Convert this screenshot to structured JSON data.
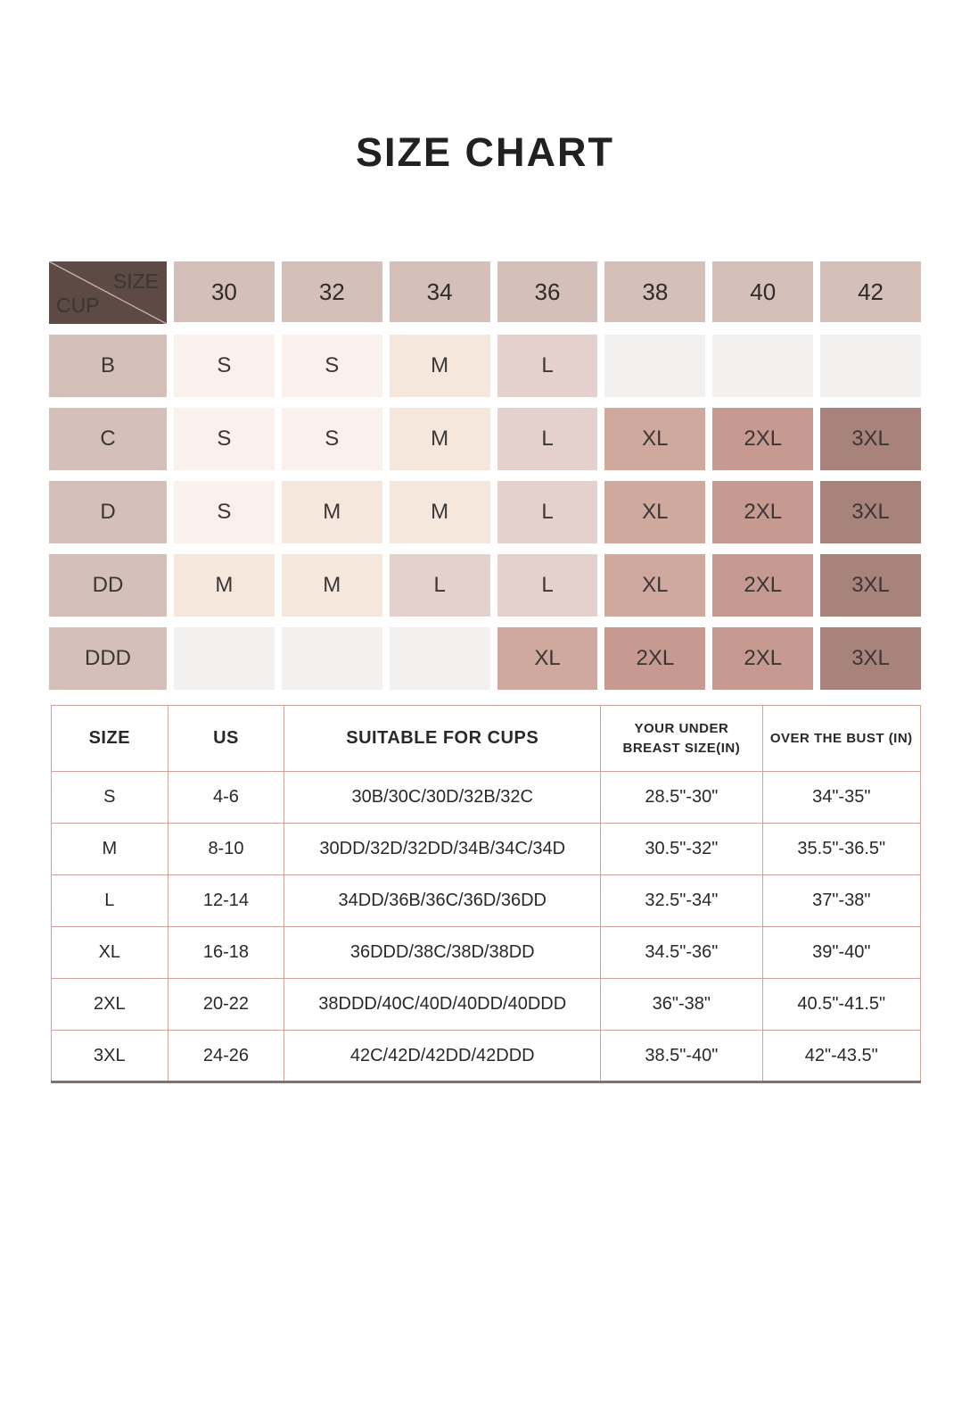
{
  "title": "SIZE CHART",
  "colors": {
    "text": "#2b2826",
    "corner_bg": "#5d4a45",
    "header_bg": "#d5bfb9",
    "label_bg": "#d5bfb9",
    "empty_bg": "#f2f1f0",
    "size_S": "#faf1ec",
    "size_M": "#f6e7dd",
    "size_L": "#e4d1ce",
    "size_XL": "#cfa89e",
    "size_2XL": "#c69a90",
    "size_3XL": "#a8837b",
    "table_border": "#cfa198"
  },
  "matrix": {
    "corner": {
      "top_label": "SIZE",
      "bottom_label": "CUP"
    },
    "columns": [
      "30",
      "32",
      "34",
      "36",
      "38",
      "40",
      "42"
    ],
    "rows": [
      {
        "cup": "B",
        "cells": [
          "S",
          "S",
          "M",
          "L",
          "",
          "",
          ""
        ]
      },
      {
        "cup": "C",
        "cells": [
          "S",
          "S",
          "M",
          "L",
          "XL",
          "2XL",
          "3XL"
        ]
      },
      {
        "cup": "D",
        "cells": [
          "S",
          "M",
          "M",
          "L",
          "XL",
          "2XL",
          "3XL"
        ]
      },
      {
        "cup": "DD",
        "cells": [
          "M",
          "M",
          "L",
          "L",
          "XL",
          "2XL",
          "3XL"
        ]
      },
      {
        "cup": "DDD",
        "cells": [
          "",
          "",
          "",
          "XL",
          "2XL",
          "2XL",
          "3XL"
        ]
      }
    ]
  },
  "size_table": {
    "headers": [
      "SIZE",
      "US",
      "SUITABLE FOR CUPS",
      "YOUR UNDER BREAST SIZE(IN)",
      "OVER THE BUST (IN)"
    ],
    "rows": [
      [
        "S",
        "4-6",
        "30B/30C/30D/32B/32C",
        "28.5\"-30\"",
        "34\"-35\""
      ],
      [
        "M",
        "8-10",
        "30DD/32D/32DD/34B/34C/34D",
        "30.5\"-32\"",
        "35.5\"-36.5\""
      ],
      [
        "L",
        "12-14",
        "34DD/36B/36C/36D/36DD",
        "32.5\"-34\"",
        "37\"-38\""
      ],
      [
        "XL",
        "16-18",
        "36DDD/38C/38D/38DD",
        "34.5\"-36\"",
        "39\"-40\""
      ],
      [
        "2XL",
        "20-22",
        "38DDD/40C/40D/40DD/40DDD",
        "36\"-38\"",
        "40.5\"-41.5\""
      ],
      [
        "3XL",
        "24-26",
        "42C/42D/42DD/42DDD",
        "38.5\"-40\"",
        "42\"-43.5\""
      ]
    ]
  }
}
